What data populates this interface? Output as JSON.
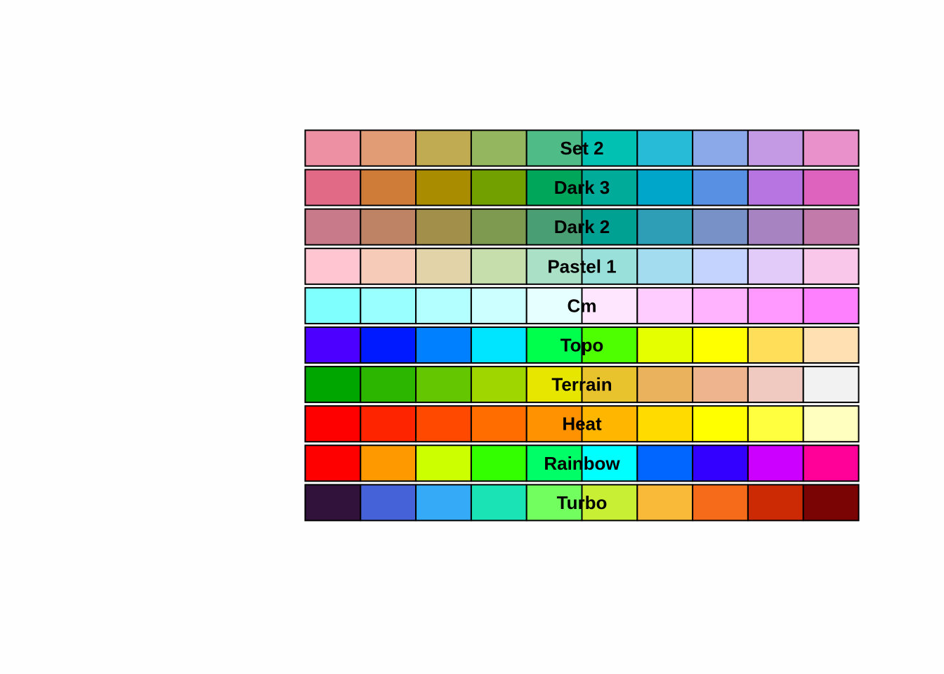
{
  "chart_data": {
    "type": "heatmap",
    "description_kind": "palette swatches",
    "grid": false,
    "palettes": [
      {
        "name": "Set 2",
        "colors": [
          "#ED90A4",
          "#E19C75",
          "#C0AB52",
          "#94B65F",
          "#4FBC87",
          "#00C1B2",
          "#28BBD7",
          "#8BA9E8",
          "#C49AE5",
          "#E891CA"
        ]
      },
      {
        "name": "Dark 3",
        "colors": [
          "#E16A86",
          "#CF7C39",
          "#A98C00",
          "#71A000",
          "#00A65A",
          "#00AC99",
          "#00A6CA",
          "#5890E3",
          "#B675E0",
          "#DD63BF"
        ]
      },
      {
        "name": "Dark 2",
        "colors": [
          "#C87A8A",
          "#BE8364",
          "#A28F49",
          "#7D9A50",
          "#4A9E73",
          "#00A092",
          "#2D9EB5",
          "#7892C8",
          "#A883C2",
          "#C27AAB"
        ]
      },
      {
        "name": "Pastel 1",
        "colors": [
          "#FFC5D0",
          "#F6CCB9",
          "#E2D4A8",
          "#C6DDAC",
          "#A9E0C6",
          "#99E0DA",
          "#A4DCEF",
          "#C4D3FE",
          "#E2CBF9",
          "#F8C7E9"
        ]
      },
      {
        "name": "Cm",
        "colors": [
          "#80FFFF",
          "#99FFFF",
          "#B3FFFF",
          "#CCFFFF",
          "#E6FFFF",
          "#FFE6FF",
          "#FFCCFF",
          "#FFB3FF",
          "#FF99FF",
          "#FF80FF"
        ]
      },
      {
        "name": "Topo",
        "colors": [
          "#4C00FF",
          "#001AFF",
          "#0080FF",
          "#00E5FF",
          "#00FF4D",
          "#4DFF00",
          "#E6FF00",
          "#FFFF00",
          "#FFDE59",
          "#FFE0B3"
        ]
      },
      {
        "name": "Terrain",
        "colors": [
          "#00A600",
          "#2DB600",
          "#63C600",
          "#A0D600",
          "#E6E600",
          "#E8C32E",
          "#EBB25E",
          "#EDB48E",
          "#F0C9C0",
          "#F2F2F2"
        ]
      },
      {
        "name": "Heat",
        "colors": [
          "#FF0000",
          "#FF2400",
          "#FF4900",
          "#FF6D00",
          "#FF9200",
          "#FFB600",
          "#FFDB00",
          "#FFFF00",
          "#FFFF40",
          "#FFFFBF"
        ]
      },
      {
        "name": "Rainbow",
        "colors": [
          "#FF0000",
          "#FF9900",
          "#CCFF00",
          "#33FF00",
          "#00FF66",
          "#00FFFF",
          "#0066FF",
          "#3300FF",
          "#CC00FF",
          "#FF0099"
        ]
      },
      {
        "name": "Turbo",
        "colors": [
          "#30123B",
          "#4662D8",
          "#35ABF8",
          "#1AE4B6",
          "#72FE5E",
          "#C8EF34",
          "#FABA39",
          "#F66B19",
          "#CB2A04",
          "#7A0403"
        ]
      }
    ]
  }
}
